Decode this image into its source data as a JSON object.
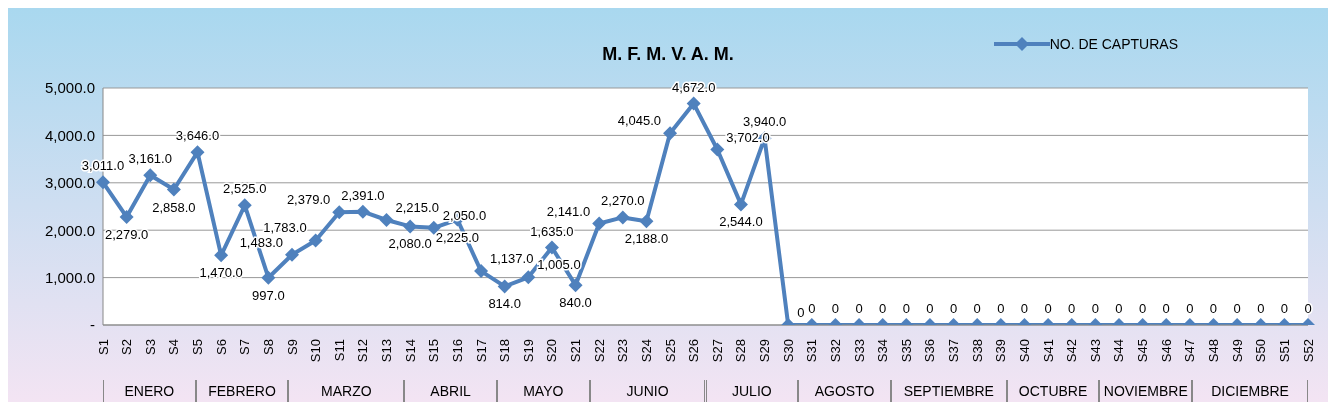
{
  "chart_data": {
    "type": "line",
    "title": "M. F. M. V. A. M.",
    "categories": [
      "S1",
      "S2",
      "S3",
      "S4",
      "S5",
      "S6",
      "S7",
      "S8",
      "S9",
      "S10",
      "S11",
      "S12",
      "S13",
      "S14",
      "S15",
      "S16",
      "S17",
      "S18",
      "S19",
      "S20",
      "S21",
      "S22",
      "S23",
      "S24",
      "S25",
      "S26",
      "S27",
      "S28",
      "S29",
      "S30",
      "S31",
      "S32",
      "S33",
      "S34",
      "S35",
      "S36",
      "S37",
      "S38",
      "S39",
      "S40",
      "S41",
      "S42",
      "S43",
      "S44",
      "S45",
      "S46",
      "S47",
      "S48",
      "S49",
      "S50",
      "S51",
      "S52"
    ],
    "series": [
      {
        "name": "NO. DE CAPTURAS",
        "color": "#4f81bd",
        "values": [
          3011,
          2279,
          3161,
          2858,
          3646,
          1470,
          2525,
          997,
          1483,
          1783,
          2379,
          2391,
          2215,
          2080,
          2050,
          2225,
          1137,
          814,
          1005,
          1635,
          840,
          2141,
          2270,
          2188,
          4045,
          4672,
          3702,
          2544,
          3940,
          0,
          0,
          0,
          0,
          0,
          0,
          0,
          0,
          0,
          0,
          0,
          0,
          0,
          0,
          0,
          0,
          0,
          0,
          0,
          0,
          0,
          0,
          0
        ],
        "value_labels": [
          "3,011.0",
          "2,279.0",
          "3,161.0",
          "2,858.0",
          "3,646.0",
          "1,470.0",
          "2,525.0",
          "997.0",
          "1,483.0",
          "1,783.0",
          "2,379.0",
          "2,391.0",
          "2,215.0",
          "2,080.0",
          "2,050.0",
          "2,225.0",
          "1,137.0",
          "814.0",
          "1,005.0",
          "1,635.0",
          "840.0",
          "2,141.0",
          "2,270.0",
          "2,188.0",
          "4,045.0",
          "4,672.0",
          "3,702.0",
          "2,544.0",
          "3,940.0",
          "0",
          "0",
          "0",
          "0",
          "0",
          "0",
          "0",
          "0",
          "0",
          "0",
          "0",
          "0",
          "0",
          "0",
          "0",
          "0",
          "0",
          "0",
          "0",
          "0",
          "0",
          "0",
          "0"
        ]
      }
    ],
    "ylim": [
      0,
      5000
    ],
    "yticks": [
      {
        "value": 0,
        "label": "-"
      },
      {
        "value": 1000,
        "label": "1,000.0"
      },
      {
        "value": 2000,
        "label": "2,000.0"
      },
      {
        "value": 3000,
        "label": "3,000.0"
      },
      {
        "value": 4000,
        "label": "4,000.0"
      },
      {
        "value": 5000,
        "label": "5,000.0"
      }
    ],
    "grid": "y",
    "legend": "top right",
    "marker": "diamond",
    "annotations": [
      "ENERO",
      "FEBRERO",
      "MARZO",
      "ABRIL",
      "MAYO",
      "JUNIO",
      "JULIO",
      "AGOSTO",
      "SEPTIEMBRE",
      "OCTUBRE",
      "NOVIEMBRE",
      "DICIEMBRE"
    ]
  }
}
